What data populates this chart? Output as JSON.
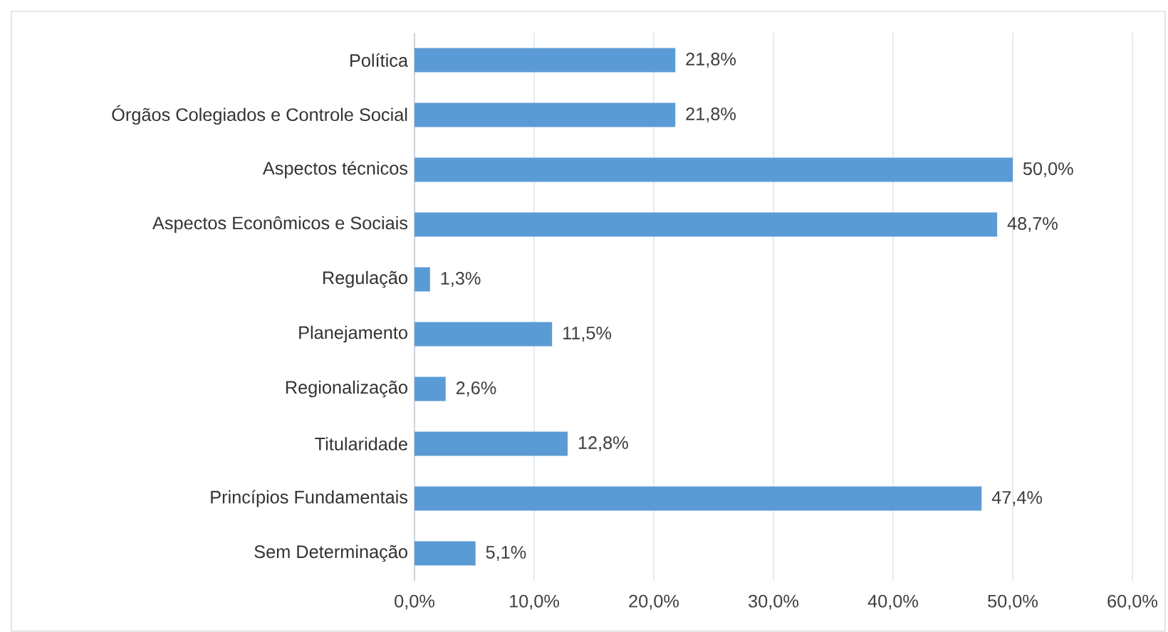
{
  "chart_data": {
    "type": "bar",
    "orientation": "horizontal",
    "categories": [
      "Política",
      "Órgãos Colegiados e Controle Social",
      "Aspectos técnicos",
      "Aspectos Econômicos e Sociais",
      "Regulação",
      "Planejamento",
      "Regionalização",
      "Titularidade",
      "Princípios Fundamentais",
      "Sem Determinação"
    ],
    "values": [
      21.8,
      21.8,
      50.0,
      48.7,
      1.3,
      11.5,
      2.6,
      12.8,
      47.4,
      5.1
    ],
    "value_labels": [
      "21,8%",
      "21,8%",
      "50,0%",
      "48,7%",
      "1,3%",
      "11,5%",
      "2,6%",
      "12,8%",
      "47,4%",
      "5,1%"
    ],
    "color": "#5b9bd5",
    "xlim": [
      0,
      60
    ],
    "xticks": [
      {
        "value": 0,
        "label": "0,0%"
      },
      {
        "value": 10,
        "label": "10,0%"
      },
      {
        "value": 20,
        "label": "20,0%"
      },
      {
        "value": 30,
        "label": "30,0%"
      },
      {
        "value": 40,
        "label": "40,0%"
      },
      {
        "value": 50,
        "label": "50,0%"
      },
      {
        "value": 60,
        "label": "60,0%"
      }
    ],
    "grid": "x"
  }
}
